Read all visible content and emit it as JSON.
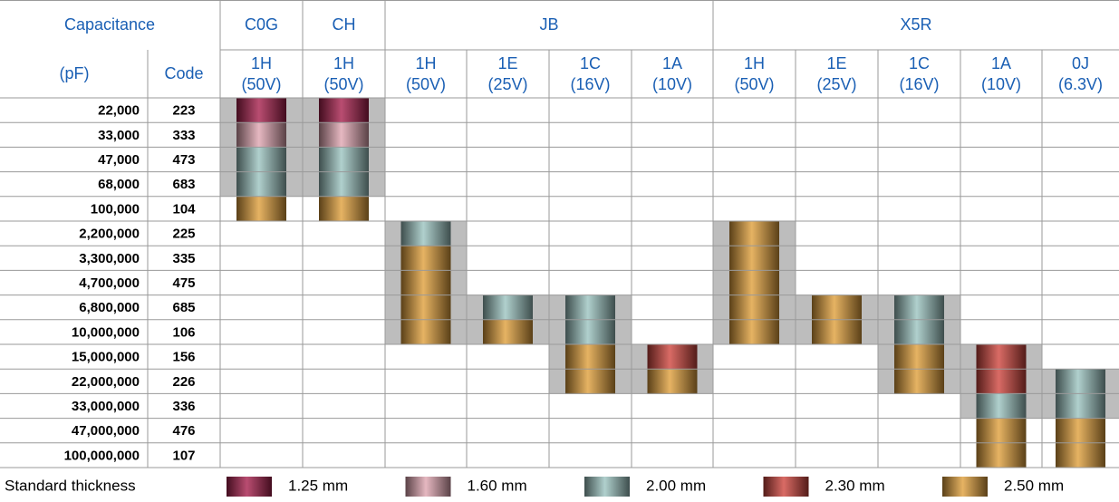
{
  "header": {
    "capacitance": "Capacitance",
    "unit": "(pF)",
    "code": "Code",
    "groups": [
      {
        "name": "C0G",
        "columns": [
          {
            "code": "1H",
            "voltage": "(50V)",
            "cells": [
              0,
              1,
              2,
              2,
              4,
              null,
              null,
              null,
              null,
              null,
              null,
              null,
              null,
              null,
              null
            ],
            "shade": [
              0,
              3
            ]
          }
        ]
      },
      {
        "name": "CH",
        "columns": [
          {
            "code": "1H",
            "voltage": "(50V)",
            "cells": [
              0,
              1,
              2,
              2,
              4,
              null,
              null,
              null,
              null,
              null,
              null,
              null,
              null,
              null,
              null
            ],
            "shade": [
              0,
              3
            ]
          }
        ]
      },
      {
        "name": "JB",
        "columns": [
          {
            "code": "1H",
            "voltage": "(50V)",
            "cells": [
              null,
              null,
              null,
              null,
              null,
              2,
              4,
              4,
              4,
              4,
              null,
              null,
              null,
              null,
              null
            ],
            "shade": [
              5,
              9
            ]
          },
          {
            "code": "1E",
            "voltage": "(25V)",
            "cells": [
              null,
              null,
              null,
              null,
              null,
              null,
              null,
              null,
              2,
              4,
              null,
              null,
              null,
              null,
              null
            ],
            "shade": [
              8,
              9
            ]
          },
          {
            "code": "1C",
            "voltage": "(16V)",
            "cells": [
              null,
              null,
              null,
              null,
              null,
              null,
              null,
              null,
              2,
              2,
              4,
              4,
              null,
              null,
              null
            ],
            "shade": [
              8,
              11
            ]
          },
          {
            "code": "1A",
            "voltage": "(10V)",
            "cells": [
              null,
              null,
              null,
              null,
              null,
              null,
              null,
              null,
              null,
              null,
              3,
              4,
              null,
              null,
              null
            ],
            "shade": [
              10,
              11
            ]
          }
        ]
      },
      {
        "name": "X5R",
        "columns": [
          {
            "code": "1H",
            "voltage": "(50V)",
            "cells": [
              null,
              null,
              null,
              null,
              null,
              4,
              4,
              4,
              4,
              4,
              null,
              null,
              null,
              null,
              null
            ],
            "shade": [
              5,
              9
            ]
          },
          {
            "code": "1E",
            "voltage": "(25V)",
            "cells": [
              null,
              null,
              null,
              null,
              null,
              null,
              null,
              null,
              4,
              4,
              null,
              null,
              null,
              null,
              null
            ],
            "shade": [
              8,
              9
            ]
          },
          {
            "code": "1C",
            "voltage": "(16V)",
            "cells": [
              null,
              null,
              null,
              null,
              null,
              null,
              null,
              null,
              2,
              2,
              4,
              4,
              null,
              null,
              null
            ],
            "shade": [
              8,
              11
            ]
          },
          {
            "code": "1A",
            "voltage": "(10V)",
            "cells": [
              null,
              null,
              null,
              null,
              null,
              null,
              null,
              null,
              null,
              null,
              3,
              3,
              2,
              4,
              4
            ],
            "shade": [
              10,
              12
            ]
          },
          {
            "code": "0J",
            "voltage": "(6.3V)",
            "cells": [
              null,
              null,
              null,
              null,
              null,
              null,
              null,
              null,
              null,
              null,
              null,
              2,
              2,
              4,
              4
            ],
            "shade": [
              11,
              12
            ]
          }
        ]
      }
    ]
  },
  "rows": [
    {
      "capacitance": "22,000",
      "code": "223"
    },
    {
      "capacitance": "33,000",
      "code": "333"
    },
    {
      "capacitance": "47,000",
      "code": "473"
    },
    {
      "capacitance": "68,000",
      "code": "683"
    },
    {
      "capacitance": "100,000",
      "code": "104"
    },
    {
      "capacitance": "2,200,000",
      "code": "225"
    },
    {
      "capacitance": "3,300,000",
      "code": "335"
    },
    {
      "capacitance": "4,700,000",
      "code": "475"
    },
    {
      "capacitance": "6,800,000",
      "code": "685"
    },
    {
      "capacitance": "10,000,000",
      "code": "106"
    },
    {
      "capacitance": "15,000,000",
      "code": "156"
    },
    {
      "capacitance": "22,000,000",
      "code": "226"
    },
    {
      "capacitance": "33,000,000",
      "code": "336"
    },
    {
      "capacitance": "47,000,000",
      "code": "476"
    },
    {
      "capacitance": "100,000,000",
      "code": "107"
    }
  ],
  "legend": {
    "title": "Standard thickness",
    "items": [
      {
        "label": "1.25 mm",
        "color": "#a8204e"
      },
      {
        "label": "1.60 mm",
        "color": "#e0a6b2"
      },
      {
        "label": "2.00 mm",
        "color": "#9cc4c0"
      },
      {
        "label": "2.30 mm",
        "color": "#d0463e"
      },
      {
        "label": "2.50 mm",
        "color": "#e0a03c"
      }
    ]
  }
}
